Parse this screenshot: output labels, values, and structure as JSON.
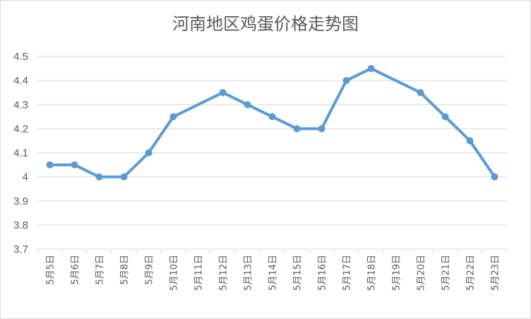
{
  "chart_data": {
    "type": "line",
    "title": "河南地区鸡蛋价格走势图",
    "xlabel": "",
    "ylabel": "",
    "ylim": [
      3.7,
      4.5
    ],
    "yticks": [
      "3.7",
      "3.8",
      "3.9",
      "4",
      "4.1",
      "4.2",
      "4.3",
      "4.4",
      "4.5"
    ],
    "categories": [
      "5月5日",
      "5月6日",
      "5月7日",
      "5月8日",
      "5月9日",
      "5月10日",
      "5月11日",
      "5月12日",
      "5月13日",
      "5月14日",
      "5月15日",
      "5月16日",
      "5月17日",
      "5月18日",
      "5月19日",
      "5月20日",
      "5月21日",
      "5月22日",
      "5月23日"
    ],
    "series": [
      {
        "values": [
          4.05,
          4.05,
          4.0,
          4.0,
          4.1,
          4.25,
          null,
          4.35,
          4.3,
          4.25,
          4.2,
          4.2,
          4.4,
          4.45,
          null,
          4.35,
          4.25,
          4.15,
          4.0
        ]
      }
    ],
    "grid": true,
    "colors": {
      "line": "#5b9bd5",
      "grid": "#d9d9d9",
      "text": "#595959"
    }
  }
}
